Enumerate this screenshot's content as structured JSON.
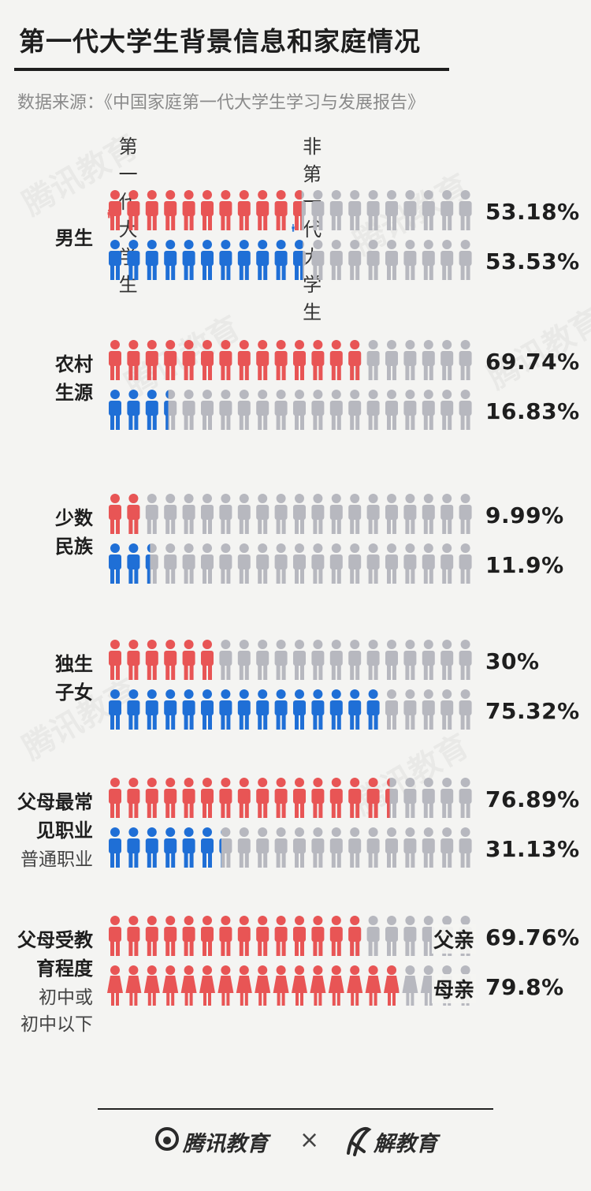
{
  "title": "第一代大学生背景信息和家庭情况",
  "source": "数据来源：《中国家庭第一代大学生学习与发展报告》",
  "colors": {
    "first_gen": "#e85555",
    "non_first_gen": "#1f6fd6",
    "empty": "#b7b8bf"
  },
  "legend": [
    {
      "label": "第一代大学生",
      "color": "#e85555"
    },
    {
      "label": "非第一代大学生",
      "color": "#1f6fd6"
    }
  ],
  "chart_data": {
    "type": "pictograph",
    "icons_per_row": 20,
    "series": [
      {
        "name": "第一代大学生",
        "values": [
          53.18,
          69.74,
          9.99,
          30,
          76.89,
          69.76
        ]
      },
      {
        "name": "非第一代大学生",
        "values": [
          53.53,
          16.83,
          11.9,
          75.32,
          31.13
        ]
      }
    ],
    "rows": [
      {
        "label": "男生",
        "sub": "",
        "bars": [
          {
            "series": "第一代大学生",
            "value": 53.18,
            "text": "53.18%",
            "prefix": ""
          },
          {
            "series": "非第一代大学生",
            "value": 53.53,
            "text": "53.53%",
            "prefix": ""
          }
        ]
      },
      {
        "label": "农村\n生源",
        "sub": "",
        "bars": [
          {
            "series": "第一代大学生",
            "value": 69.74,
            "text": "69.74%",
            "prefix": ""
          },
          {
            "series": "非第一代大学生",
            "value": 16.83,
            "text": "16.83%",
            "prefix": ""
          }
        ]
      },
      {
        "label": "少数\n民族",
        "sub": "",
        "bars": [
          {
            "series": "第一代大学生",
            "value": 9.99,
            "text": "9.99%",
            "prefix": ""
          },
          {
            "series": "非第一代大学生",
            "value": 11.9,
            "text": "11.9%",
            "prefix": ""
          }
        ]
      },
      {
        "label": "独生\n子女",
        "sub": "",
        "bars": [
          {
            "series": "第一代大学生",
            "value": 30,
            "text": "30%",
            "prefix": ""
          },
          {
            "series": "非第一代大学生",
            "value": 75.32,
            "text": "75.32%",
            "prefix": ""
          }
        ]
      },
      {
        "label": "父母最常\n见职业",
        "sub": "普通职业",
        "bars": [
          {
            "series": "第一代大学生",
            "value": 76.89,
            "text": "76.89%",
            "prefix": ""
          },
          {
            "series": "非第一代大学生",
            "value": 31.13,
            "text": "31.13%",
            "prefix": ""
          }
        ]
      },
      {
        "label": "父母受教\n育程度",
        "sub": "初中或\n初中以下",
        "bars": [
          {
            "series": "第一代大学生",
            "value": 69.76,
            "text": "69.76%",
            "prefix": "父亲",
            "icon": "male"
          },
          {
            "series": "第一代大学生",
            "value": 79.8,
            "text": "79.8%",
            "prefix": "母亲",
            "icon": "female"
          }
        ]
      }
    ]
  },
  "footer": {
    "brand_left": "腾讯教育",
    "times": "×",
    "brand_right": "解教育"
  },
  "watermark": "腾讯教育"
}
